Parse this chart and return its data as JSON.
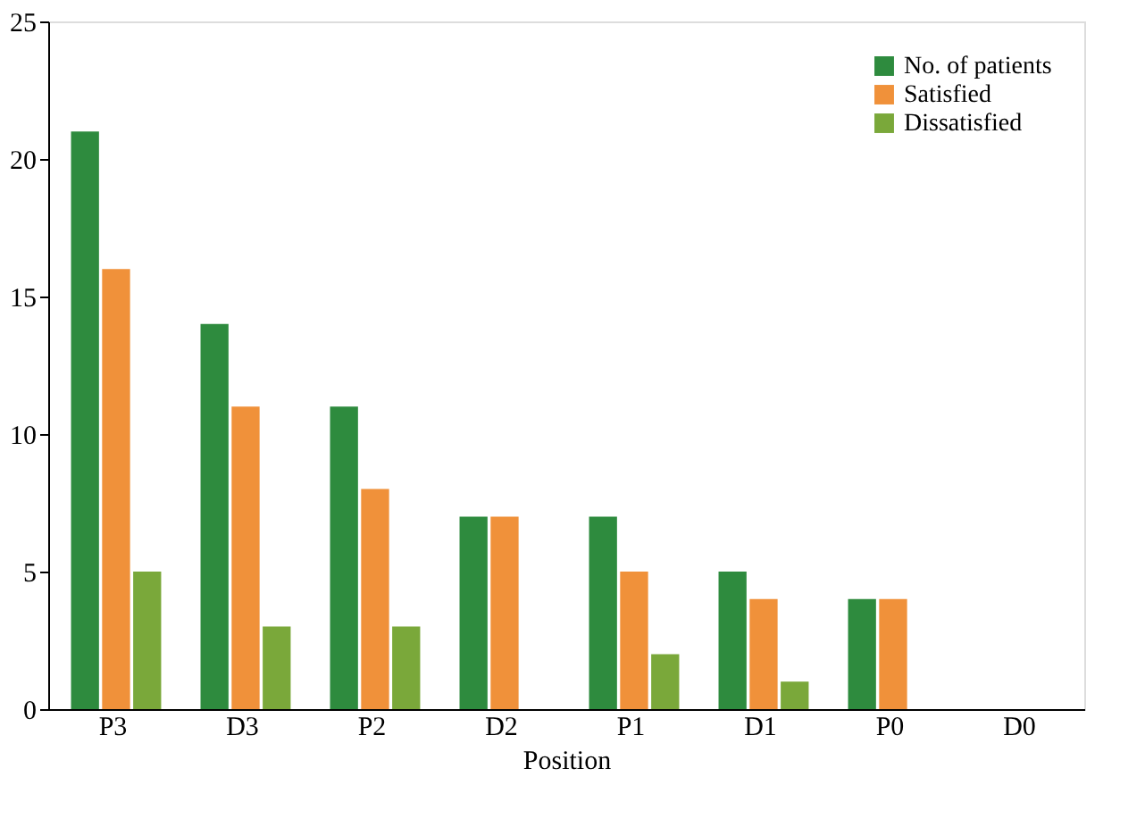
{
  "chart_data": {
    "type": "bar",
    "xlabel": "Position",
    "categories": [
      "P3",
      "D3",
      "P2",
      "D2",
      "P1",
      "D1",
      "P0",
      "D0"
    ],
    "series": [
      {
        "name": "No. of patients",
        "color": "#2e8b3e",
        "values": [
          21,
          14,
          11,
          7,
          7,
          5,
          4,
          0
        ]
      },
      {
        "name": "Satisfied",
        "color": "#f0913a",
        "values": [
          16,
          11,
          8,
          7,
          5,
          4,
          4,
          0
        ]
      },
      {
        "name": "Dissatisfied",
        "color": "#7aa83a",
        "values": [
          5,
          3,
          3,
          0,
          2,
          1,
          0,
          0
        ]
      }
    ],
    "ylim": [
      0,
      25
    ],
    "yticks": [
      0,
      5,
      10,
      15,
      20,
      25
    ],
    "grid": false,
    "legend": "top right"
  }
}
